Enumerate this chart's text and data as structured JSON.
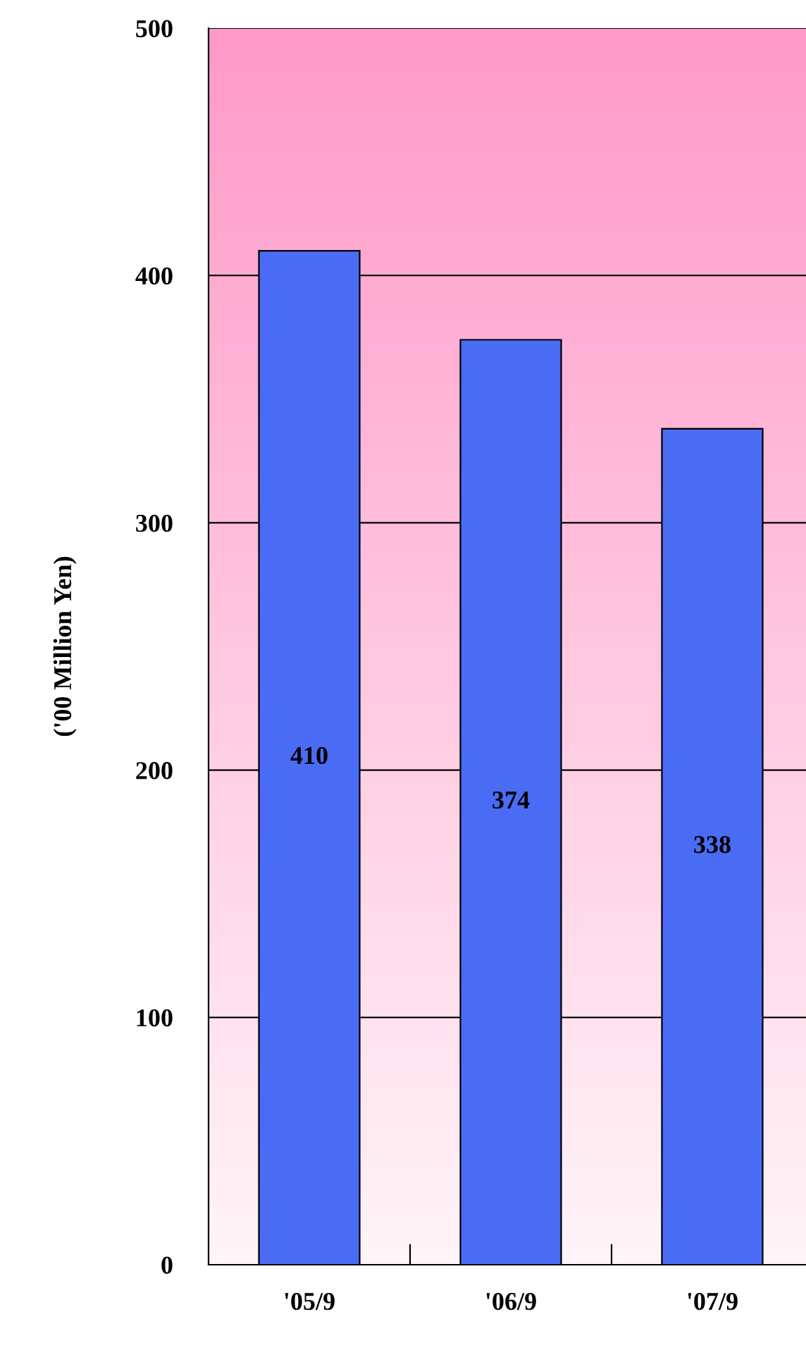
{
  "chart_data": {
    "type": "bar",
    "ylabel": "('00 Million Yen)",
    "categories": [
      "'05/9",
      "'06/9",
      "'07/9"
    ],
    "values": [
      410,
      374,
      338
    ],
    "color": "#4a6cf5",
    "ylim": [
      0,
      500
    ],
    "yticks": [
      0,
      100,
      200,
      300,
      400,
      500
    ],
    "grid": "y",
    "data_labels": true
  }
}
